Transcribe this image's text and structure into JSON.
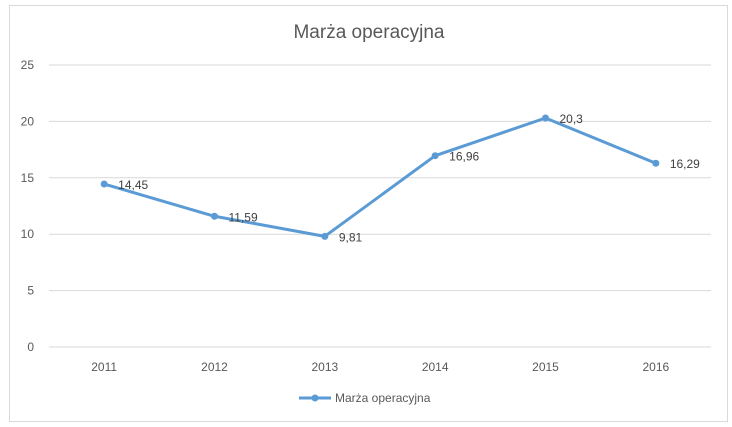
{
  "chart_data": {
    "type": "line",
    "title": "Marża operacyjna",
    "xlabel": "",
    "ylabel": "",
    "categories": [
      "2011",
      "2012",
      "2013",
      "2014",
      "2015",
      "2016"
    ],
    "series": [
      {
        "name": "Marża operacyjna",
        "values": [
          14.45,
          11.59,
          9.81,
          16.96,
          20.3,
          16.29
        ],
        "labels": [
          "14,45",
          "11,59",
          "9,81",
          "16,96",
          "20,3",
          "16,29"
        ],
        "color": "#5b9bd5"
      }
    ],
    "ylim": [
      0,
      25
    ],
    "yticks": [
      0,
      5,
      10,
      15,
      20,
      25
    ],
    "grid": true,
    "legend_position": "bottom",
    "colors": {
      "grid": "#d9d9d9",
      "text": "#595959",
      "series": "#5b9bd5"
    }
  }
}
